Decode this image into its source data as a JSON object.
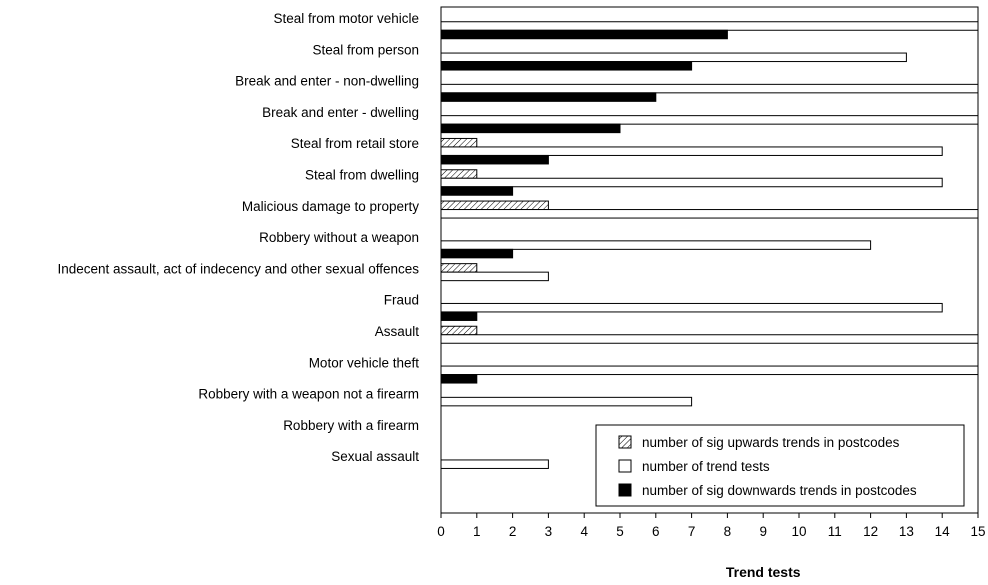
{
  "chart_data": {
    "type": "bar",
    "orientation": "horizontal",
    "xlabel": "Trend tests",
    "xlim": [
      0,
      15
    ],
    "x_ticks": [
      "0",
      "1",
      "2",
      "3",
      "4",
      "5",
      "6",
      "7",
      "8",
      "9",
      "10",
      "11",
      "12",
      "13",
      "14",
      "15"
    ],
    "grid": false,
    "legend_position": "bottom-right",
    "categories": [
      "Steal from motor vehicle",
      "Steal from person",
      "Break and enter - non-dwelling",
      "Break and enter - dwelling",
      "Steal from retail store",
      "Steal from dwelling",
      "Malicious damage to property",
      "Robbery without a weapon",
      "Indecent assault, act of indecency and other sexual offences",
      "Fraud",
      "Assault",
      "Motor vehicle theft",
      "Robbery with a weapon not a firearm",
      "Robbery with a firearm",
      "Sexual assault"
    ],
    "series": [
      {
        "name": "number of sig upwards trends in postcodes",
        "color": "#ffffff",
        "pattern": "hatch",
        "values": [
          0,
          0,
          0,
          0,
          1,
          1,
          3,
          0,
          1,
          0,
          1,
          0,
          0,
          0,
          0
        ]
      },
      {
        "name": "number of trend tests",
        "color": "#ffffff",
        "pattern": "none",
        "values": [
          15,
          13,
          15,
          15,
          14,
          14,
          15,
          12,
          3,
          14,
          15,
          15,
          7,
          0,
          3
        ]
      },
      {
        "name": "number of sig downwards trends in postcodes",
        "color": "#000000",
        "pattern": "solid",
        "values": [
          8,
          7,
          6,
          5,
          3,
          2,
          0,
          2,
          0,
          1,
          0,
          1,
          0,
          0,
          0
        ]
      }
    ]
  }
}
